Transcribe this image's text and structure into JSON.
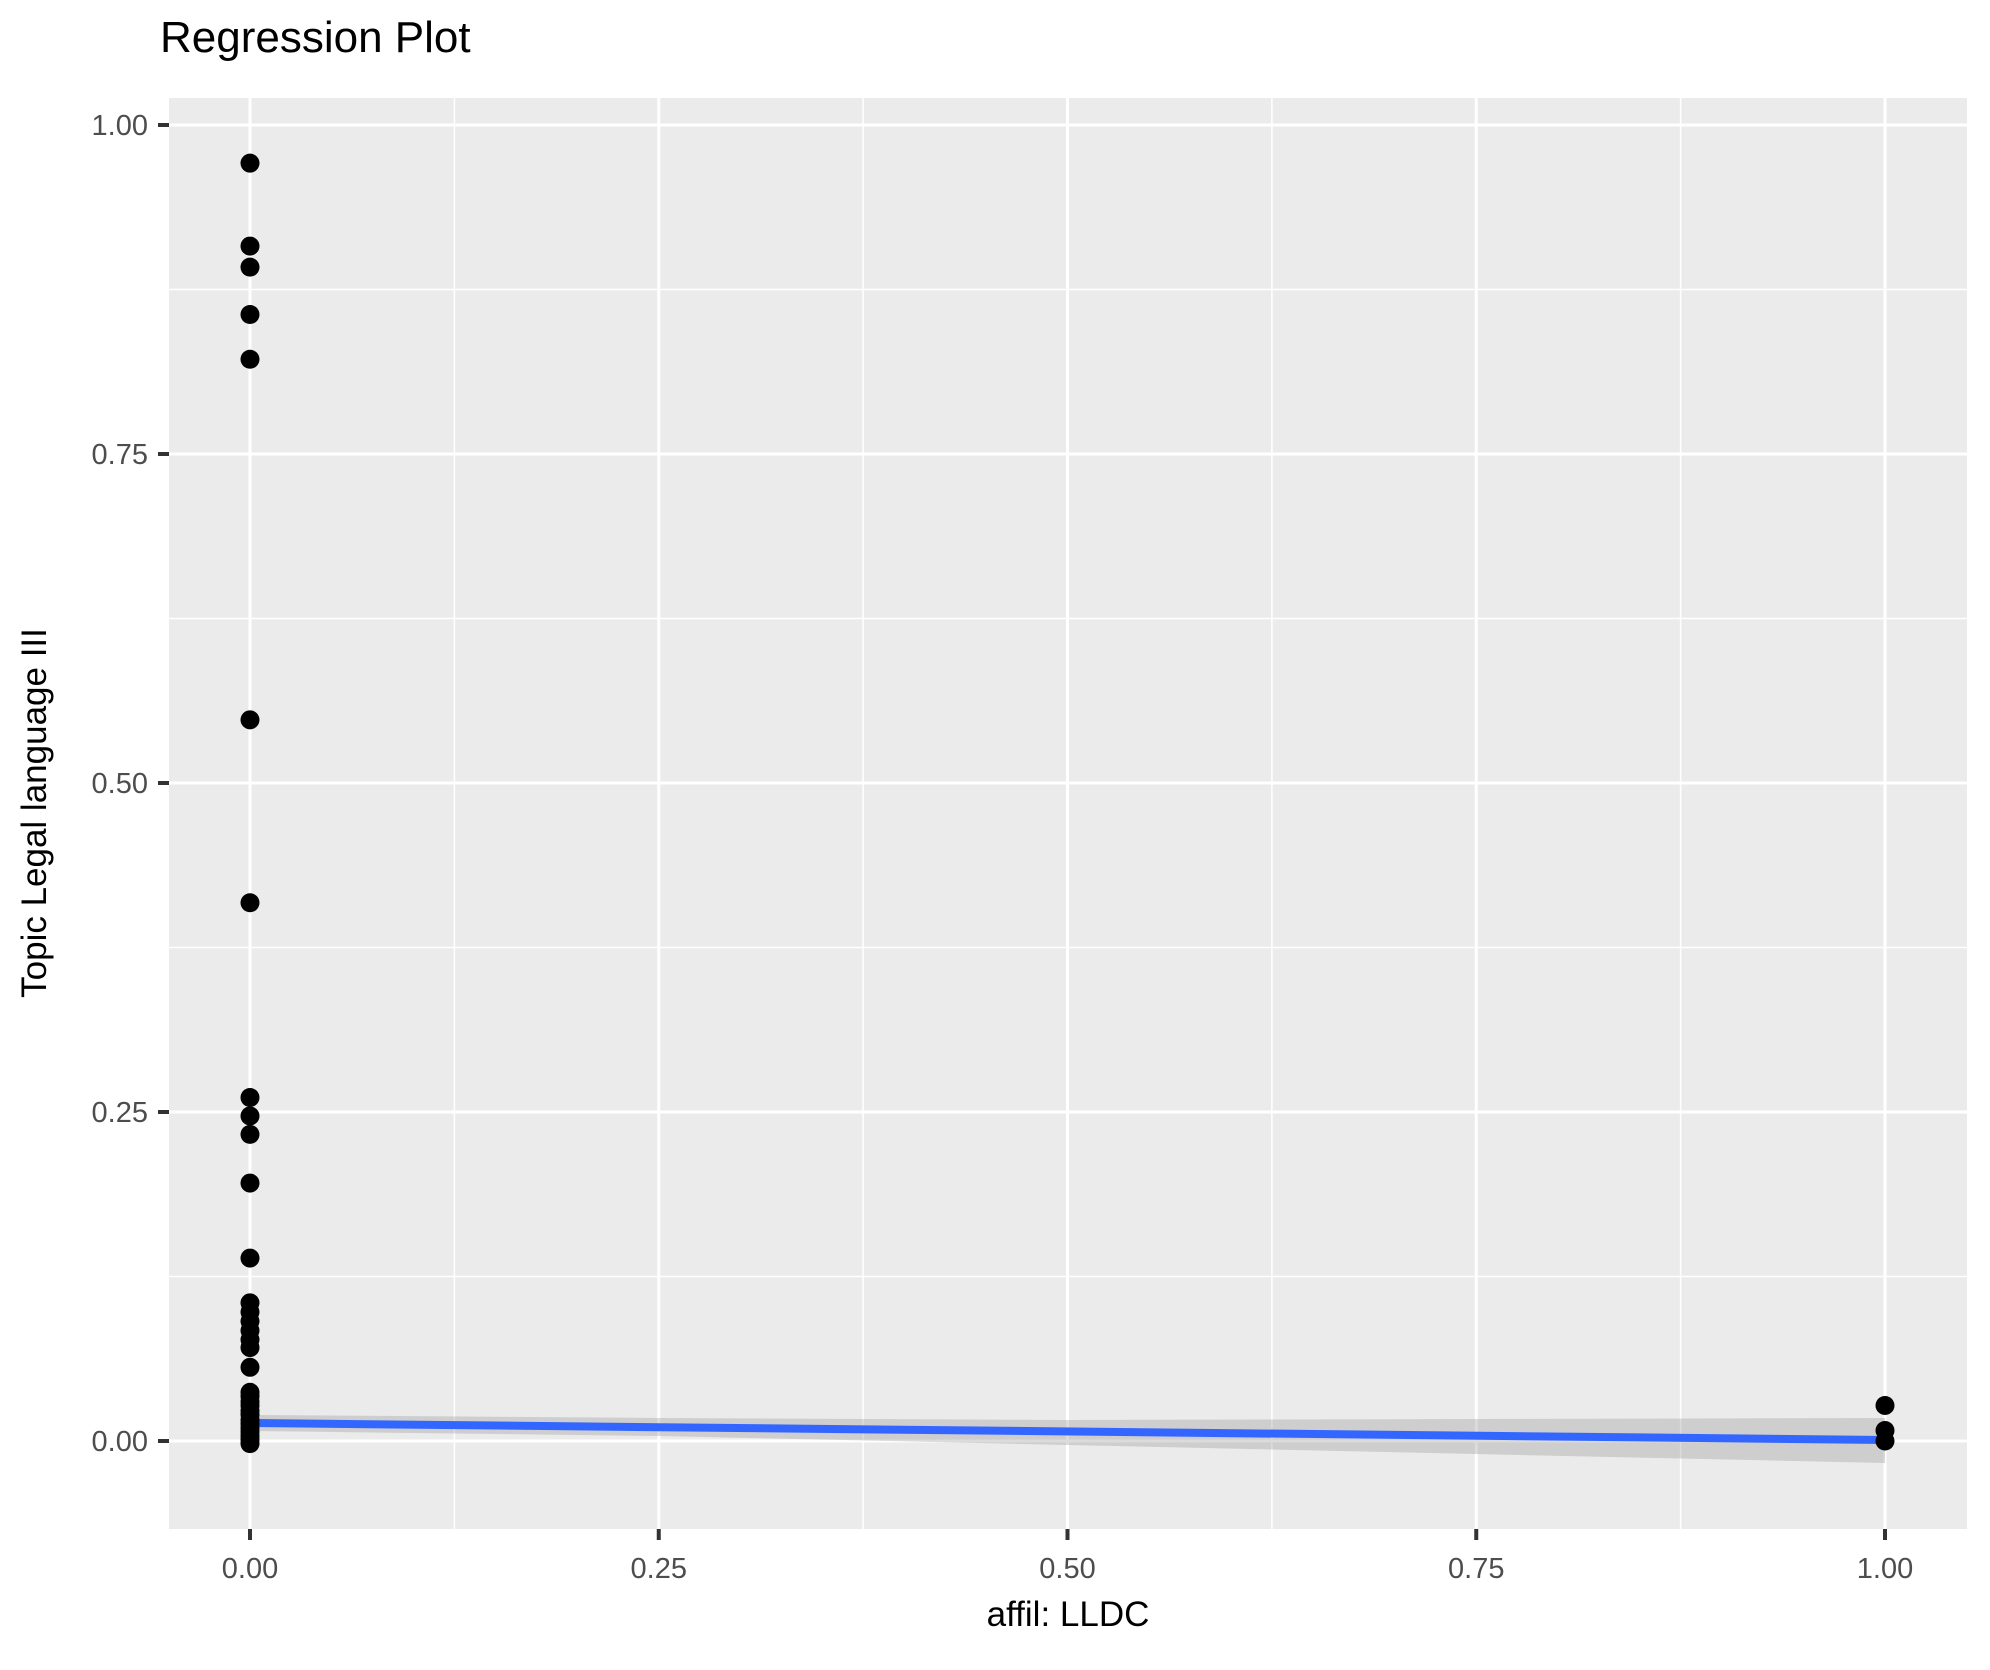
{
  "title": "Regression Plot",
  "chart_data": {
    "type": "scatter",
    "title": "Regression Plot",
    "xlabel": "affil: LLDC",
    "ylabel": "Topic Legal language III",
    "xlim": [
      -0.0495,
      1.0502
    ],
    "ylim": [
      -0.0669,
      1.0205
    ],
    "grid": {
      "major": true,
      "minor": true
    },
    "x_ticks": {
      "values": [
        0.0,
        0.25,
        0.5,
        0.75,
        1.0
      ],
      "labels": [
        "0.00",
        "0.25",
        "0.50",
        "0.75",
        "1.00"
      ]
    },
    "y_ticks": {
      "values": [
        0.0,
        0.25,
        0.5,
        0.75,
        1.0
      ],
      "labels": [
        "0.00",
        "0.25",
        "0.50",
        "0.75",
        "1.00"
      ]
    },
    "x_minor_ticks": [
      0.125,
      0.375,
      0.625,
      0.875
    ],
    "y_minor_ticks": [
      0.125,
      0.375,
      0.625,
      0.875
    ],
    "legend": "none",
    "points": [
      {
        "x": 0,
        "y": 0.971
      },
      {
        "x": 0,
        "y": 0.908
      },
      {
        "x": 0,
        "y": 0.892
      },
      {
        "x": 0,
        "y": 0.856
      },
      {
        "x": 0,
        "y": 0.822
      },
      {
        "x": 0,
        "y": 0.548
      },
      {
        "x": 0,
        "y": 0.409
      },
      {
        "x": 0,
        "y": 0.261
      },
      {
        "x": 0,
        "y": 0.247
      },
      {
        "x": 0,
        "y": 0.233
      },
      {
        "x": 0,
        "y": 0.196
      },
      {
        "x": 0,
        "y": 0.139
      },
      {
        "x": 0,
        "y": 0.105
      },
      {
        "x": 0,
        "y": 0.098
      },
      {
        "x": 0,
        "y": 0.091
      },
      {
        "x": 0,
        "y": 0.084
      },
      {
        "x": 0,
        "y": 0.077
      },
      {
        "x": 0,
        "y": 0.071
      },
      {
        "x": 0,
        "y": 0.056
      },
      {
        "x": 0,
        "y": 0.037
      },
      {
        "x": 0,
        "y": 0.034
      },
      {
        "x": 0,
        "y": 0.03
      },
      {
        "x": 0,
        "y": 0.027
      },
      {
        "x": 0,
        "y": 0.023
      },
      {
        "x": 0,
        "y": 0.02
      },
      {
        "x": 0,
        "y": 0.016
      },
      {
        "x": 0,
        "y": 0.013
      },
      {
        "x": 0,
        "y": 0.01
      },
      {
        "x": 0,
        "y": 0.007
      },
      {
        "x": 0,
        "y": 0.004
      },
      {
        "x": 0,
        "y": 0.001
      },
      {
        "x": 0,
        "y": -0.002
      },
      {
        "x": 1,
        "y": 0.027
      },
      {
        "x": 1,
        "y": 0.008
      },
      {
        "x": 1,
        "y": 0.0
      }
    ],
    "regression_line": {
      "x": [
        0.0,
        1.0
      ],
      "y": [
        0.0137,
        0.0008
      ]
    },
    "confidence_band": {
      "x": [
        0.0,
        0.25,
        0.5,
        0.75,
        1.0
      ],
      "upper": [
        0.0198,
        0.0175,
        0.016,
        0.0167,
        0.0175
      ],
      "lower": [
        0.0076,
        0.0038,
        -0.003,
        -0.0099,
        -0.0167
      ]
    },
    "colors": {
      "panel_background": "#EBEBEB",
      "gridline": "#FFFFFF",
      "point": "#000000",
      "regression_line": "#3366FF",
      "confidence_band": "#999999",
      "confidence_band_opacity": "0.35",
      "tick_mark": "#333333",
      "tick_label": "#4D4D4D",
      "title_text": "#000000"
    }
  }
}
